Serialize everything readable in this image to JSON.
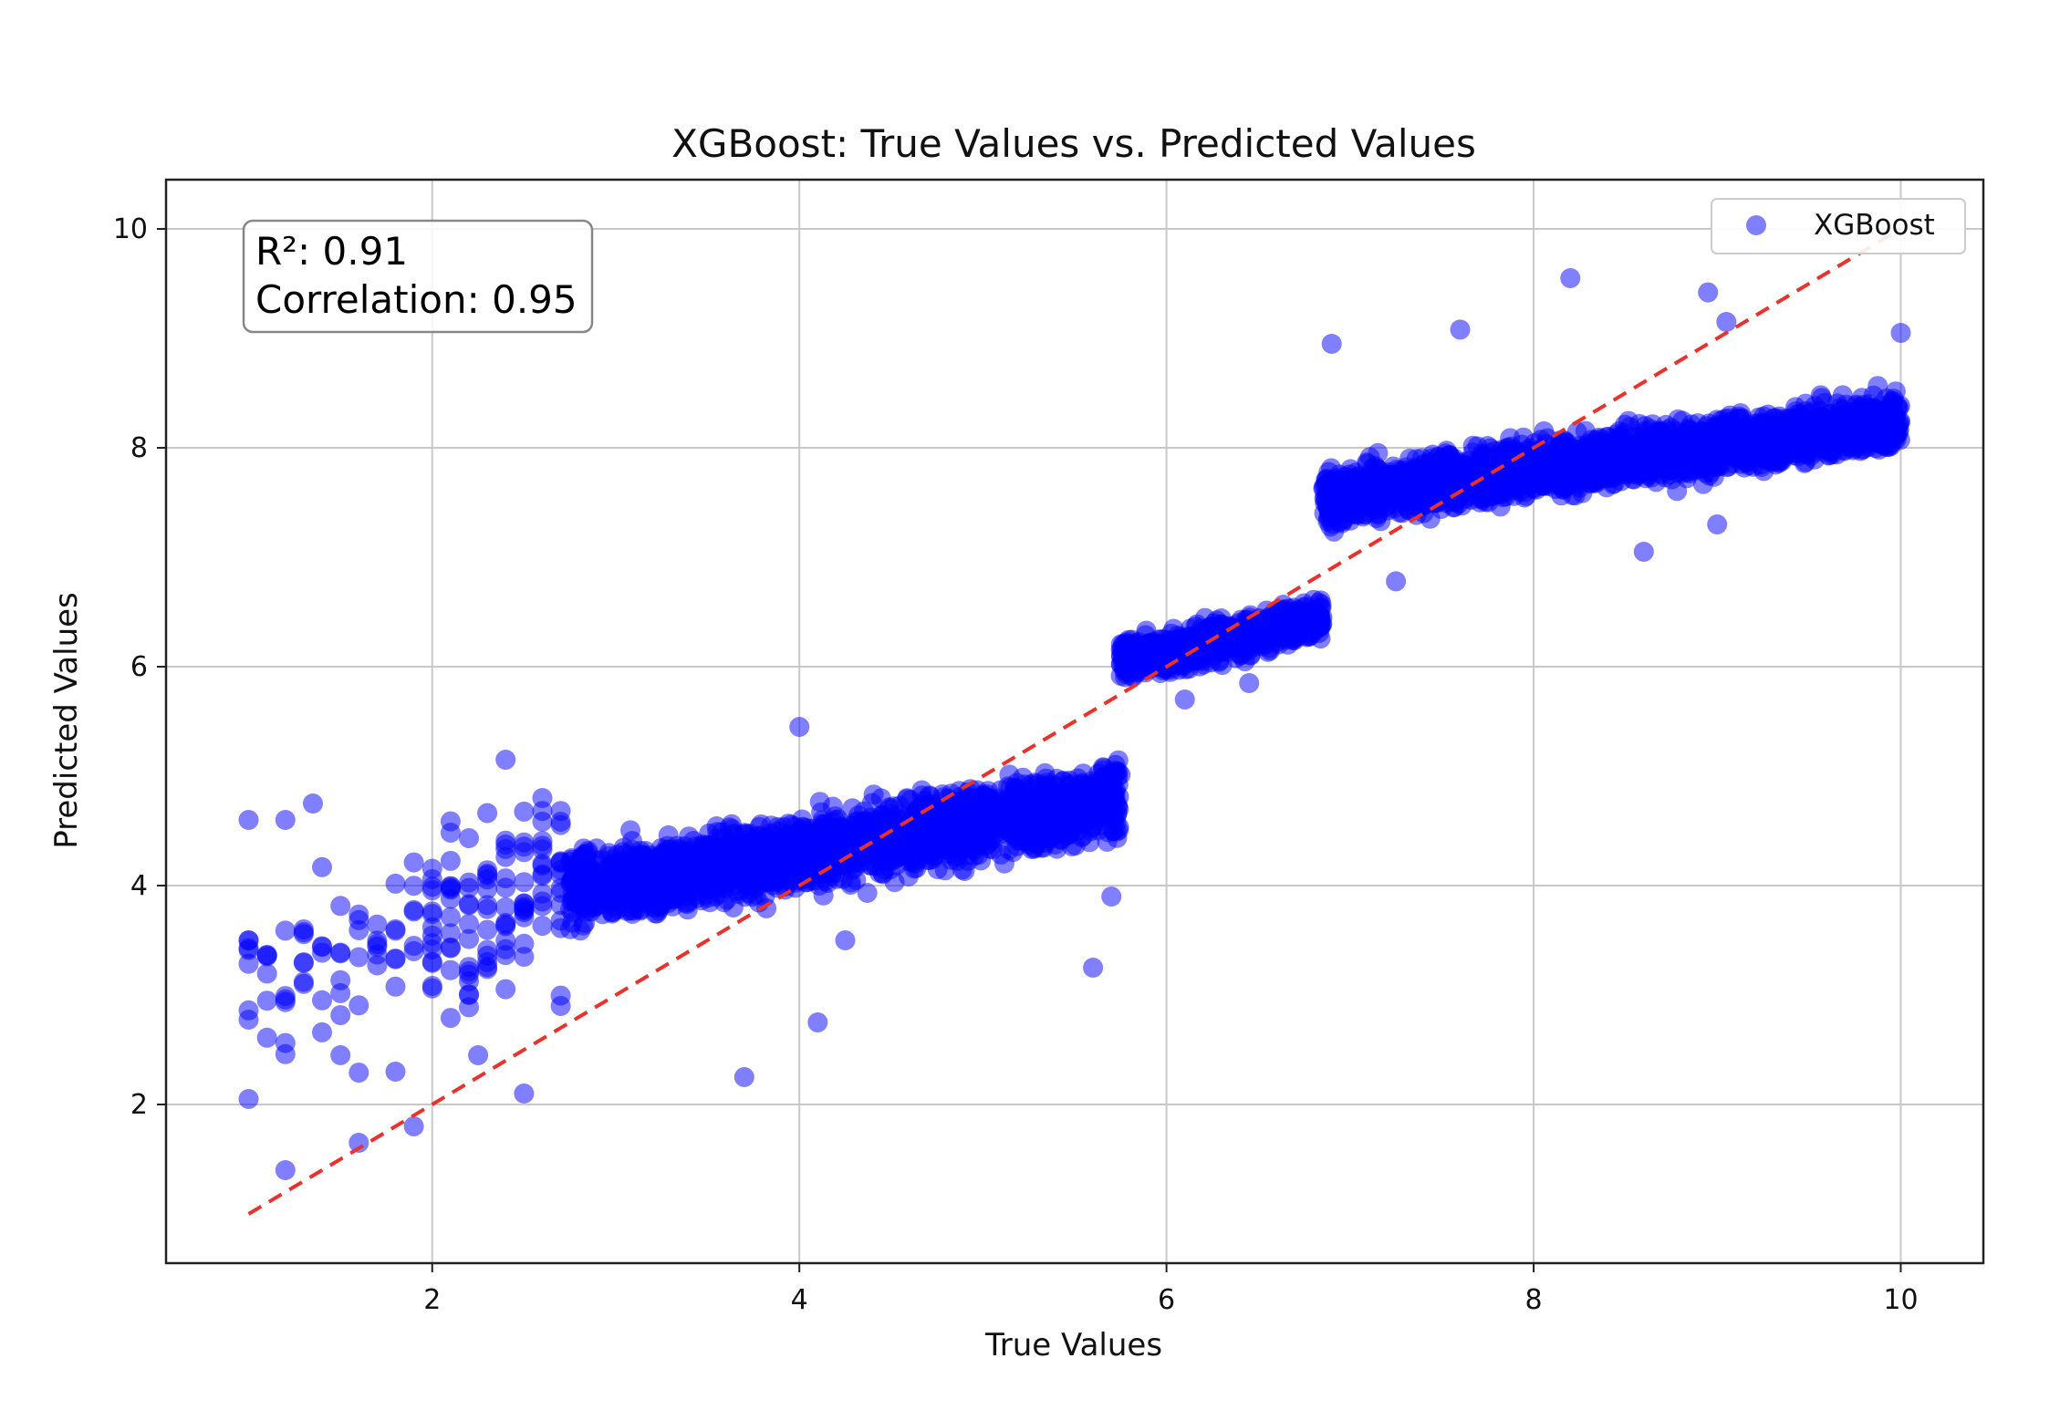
{
  "chart_data": {
    "type": "scatter",
    "title": "XGBoost: True Values vs. Predicted Values",
    "xlabel": "True Values",
    "ylabel": "Predicted Values",
    "xlim": [
      0.55,
      10.45
    ],
    "ylim": [
      0.55,
      10.45
    ],
    "xticks": [
      2,
      4,
      6,
      8,
      10
    ],
    "yticks": [
      2,
      4,
      6,
      8,
      10
    ],
    "grid": true,
    "legend": {
      "placement": "top-right",
      "entries": [
        {
          "label": "XGBoost",
          "color": "#0000ff"
        }
      ]
    },
    "annotation": {
      "lines": [
        "R²: 0.91",
        "Correlation: 0.95"
      ],
      "placement": "top-left"
    },
    "reference_line": {
      "style": "dashed",
      "color": "#e8322b",
      "x": [
        1,
        10
      ],
      "y": [
        1,
        10
      ]
    },
    "series": [
      {
        "name": "XGBoost",
        "color": "#0000ff",
        "opacity": 0.5,
        "clusters": [
          {
            "x_range": [
              1.0,
              2.75
            ],
            "y_center_at_start": 3.0,
            "y_slope": 0.6,
            "y_spread": 1.4,
            "density": "sparse"
          },
          {
            "x_range": [
              2.75,
              5.75
            ],
            "y_center_at_start": 3.95,
            "y_slope": 0.28,
            "y_spread": 0.55,
            "density": "dense"
          },
          {
            "x_range": [
              5.75,
              6.85
            ],
            "y_center_at_start": 6.05,
            "y_slope": 0.35,
            "y_spread": 0.3,
            "density": "dense"
          },
          {
            "x_range": [
              6.85,
              10.0
            ],
            "y_center_at_start": 7.55,
            "y_slope": 0.22,
            "y_spread": 0.42,
            "density": "dense"
          }
        ],
        "points": [
          [
            8.2,
            9.55
          ],
          [
            1.2,
            4.6
          ],
          [
            1.0,
            4.6
          ],
          [
            1.0,
            3.5
          ],
          [
            1.0,
            2.05
          ],
          [
            1.2,
            1.4
          ],
          [
            1.6,
            1.65
          ],
          [
            2.5,
            2.1
          ],
          [
            3.7,
            2.25
          ],
          [
            4.1,
            2.75
          ],
          [
            5.6,
            3.25
          ],
          [
            7.25,
            6.78
          ],
          [
            9.0,
            7.3
          ],
          [
            8.6,
            7.05
          ],
          [
            6.1,
            5.7
          ],
          [
            6.45,
            5.85
          ],
          [
            9.05,
            9.15
          ],
          [
            8.95,
            9.42
          ],
          [
            10.0,
            9.05
          ],
          [
            6.9,
            8.95
          ],
          [
            7.6,
            9.08
          ],
          [
            2.4,
            5.15
          ],
          [
            4.0,
            5.45
          ],
          [
            1.35,
            4.75
          ],
          [
            1.5,
            2.45
          ],
          [
            1.9,
            1.8
          ],
          [
            2.7,
            2.9
          ],
          [
            4.25,
            3.5
          ],
          [
            5.7,
            3.9
          ],
          [
            1.3,
            3.6
          ],
          [
            1.8,
            2.3
          ],
          [
            2.25,
            2.45
          ]
        ]
      }
    ]
  }
}
